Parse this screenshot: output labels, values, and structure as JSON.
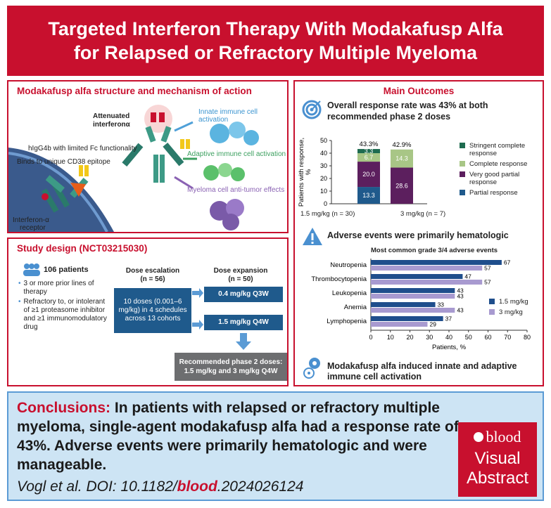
{
  "title": "Targeted Interferon Therapy With Modakafusp Alfa for Relapsed or Refractory Multiple Myeloma",
  "structure_panel": {
    "title": "Modakafusp alfa structure and mechanism of action",
    "labels": {
      "attenuated": "Attenuated",
      "interferon": "interferonα",
      "igg": "hIgG4b with limited Fc functionality",
      "cd38": "Binds to unique CD38 epitope",
      "receptor_line1": "Interferon-α",
      "receptor_line2": "receptor"
    },
    "effects": [
      "Innate immune cell activation",
      "Adaptive immune cell activation",
      "Myeloma cell anti-tumor effects"
    ]
  },
  "study_panel": {
    "title": "Study design (NCT03215030)",
    "patients": "106 patients",
    "bullets": [
      "3 or more prior lines of therapy",
      "Refractory to, or intolerant of ≥1 proteasome inhibitor and ≥1 immunomodulatory drug"
    ],
    "escalation_header": "Dose escalation",
    "escalation_n": "(n = 56)",
    "escalation_box": "10 doses (0.001–6 mg/kg) in 4 schedules across 13 cohorts",
    "expansion_header": "Dose expansion",
    "expansion_n": "(n = 50)",
    "expansion_arms": [
      "0.4 mg/kg Q3W",
      "1.5 mg/kg Q4W"
    ],
    "recommended": "Recommended phase 2 doses: 1.5 mg/kg and 3 mg/kg Q4W"
  },
  "outcomes_panel": {
    "title": "Main Outcomes",
    "orr_heading": "Overall response rate was 43% at both recommended phase 2 doses",
    "ae_heading": "Adverse events were primarily hematologic",
    "immune_heading": "Modakafusp alfa induced innate and adaptive immune cell activation"
  },
  "colors": {
    "brand_red": "#c8102e",
    "stringent": "#1e6b4f",
    "complete": "#a8c686",
    "vgpr": "#5c1f5e",
    "partial": "#1f5a8c",
    "dose_1_5": "#1f4e8c",
    "dose_3": "#a89ad0"
  },
  "chart_data": [
    {
      "type": "bar",
      "stacked": true,
      "categories": [
        "1.5 mg/kg (n = 30)",
        "3 mg/kg (n = 7)"
      ],
      "totals": [
        "43.3%",
        "42.9%"
      ],
      "ylabel": "Patients with response, %",
      "ylim": [
        0,
        50
      ],
      "yticks": [
        0,
        10,
        20,
        30,
        40,
        50
      ],
      "legend_position": "right",
      "series": [
        {
          "name": "Partial response",
          "values": [
            13.3,
            0
          ],
          "labels": [
            "13.3",
            ""
          ]
        },
        {
          "name": "Very good partial response",
          "values": [
            20.0,
            28.6
          ],
          "labels": [
            "20.0",
            "28.6"
          ]
        },
        {
          "name": "Complete response",
          "values": [
            6.7,
            14.3
          ],
          "labels": [
            "6.7",
            "14.3"
          ]
        },
        {
          "name": "Stringent complete response",
          "values": [
            3.3,
            0
          ],
          "labels": [
            "3.3",
            ""
          ]
        }
      ],
      "legend_order": [
        "Stringent complete response",
        "Complete response",
        "Very good partial response",
        "Partial response"
      ]
    },
    {
      "type": "bar",
      "orientation": "horizontal",
      "title": "Most common grade 3/4 adverse events",
      "categories": [
        "Neutropenia",
        "Thrombocytopenia",
        "Leukopenia",
        "Anemia",
        "Lymphopenia"
      ],
      "xlabel": "Patients, %",
      "xlim": [
        0,
        80
      ],
      "xticks": [
        0,
        10,
        20,
        30,
        40,
        50,
        60,
        70,
        80
      ],
      "legend_position": "right",
      "series": [
        {
          "name": "1.5 mg/kg",
          "values": [
            67,
            47,
            43,
            33,
            37
          ]
        },
        {
          "name": "3 mg/kg",
          "values": [
            57,
            57,
            43,
            43,
            29
          ]
        }
      ]
    }
  ],
  "conclusion": {
    "lead": "Conclusions:",
    "text": "In patients with relapsed or refractory multiple myeloma, single-agent modakafusp alfa had a response rate of 43%. Adverse events were primarily hematologic and were manageable.",
    "citation_prefix": "Vogl et al. DOI: 10.1182/",
    "citation_journal": "blood",
    "citation_suffix": ".2024026124"
  },
  "logo": {
    "word": "blood",
    "line1": "Visual",
    "line2": "Abstract"
  }
}
